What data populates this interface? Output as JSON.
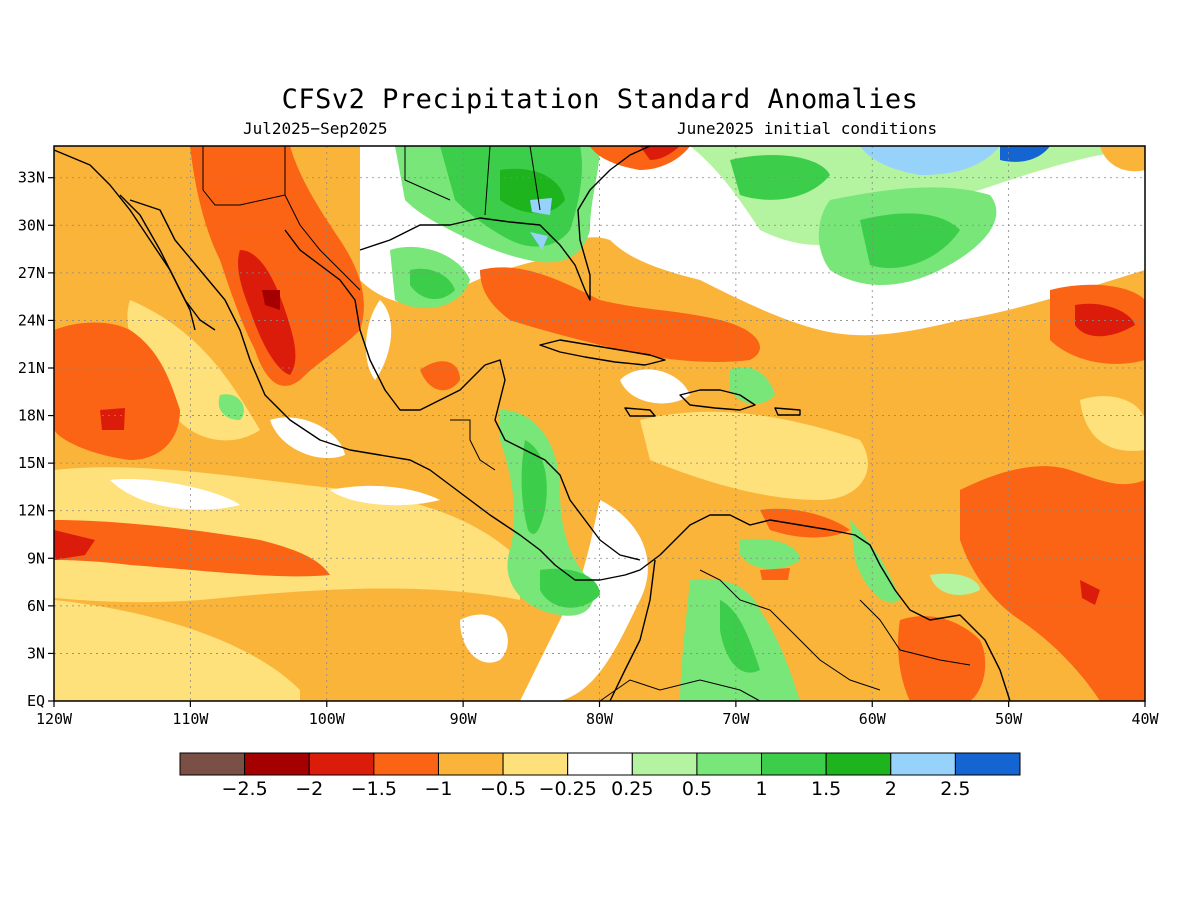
{
  "title": "CFSv2 Precipitation Standard Anomalies",
  "period": "Jul2025−Sep2025",
  "initial_conditions": "June2025 initial conditions",
  "lon_ticks": [
    "120W",
    "110W",
    "100W",
    "90W",
    "80W",
    "70W",
    "60W",
    "50W",
    "40W"
  ],
  "lat_ticks": [
    "EQ",
    "3N",
    "6N",
    "9N",
    "12N",
    "15N",
    "18N",
    "21N",
    "24N",
    "27N",
    "30N",
    "33N"
  ],
  "lon_range": [
    -120,
    -40
  ],
  "lat_range": [
    0,
    35
  ],
  "grid": "dotted",
  "colorbar": {
    "colors": [
      "#7a4f45",
      "#a50000",
      "#dc1c0b",
      "#fa6414",
      "#fbb43a",
      "#fee17b",
      "#ffffff",
      "#b4f4a0",
      "#78e678",
      "#3cce4a",
      "#1eb41e",
      "#96d2fa",
      "#1464d2"
    ],
    "labels": [
      "−2.5",
      "−2",
      "−1.5",
      "−1",
      "−0.5",
      "−0.25",
      "0.25",
      "0.5",
      "1",
      "1.5",
      "2",
      "2.5"
    ]
  }
}
